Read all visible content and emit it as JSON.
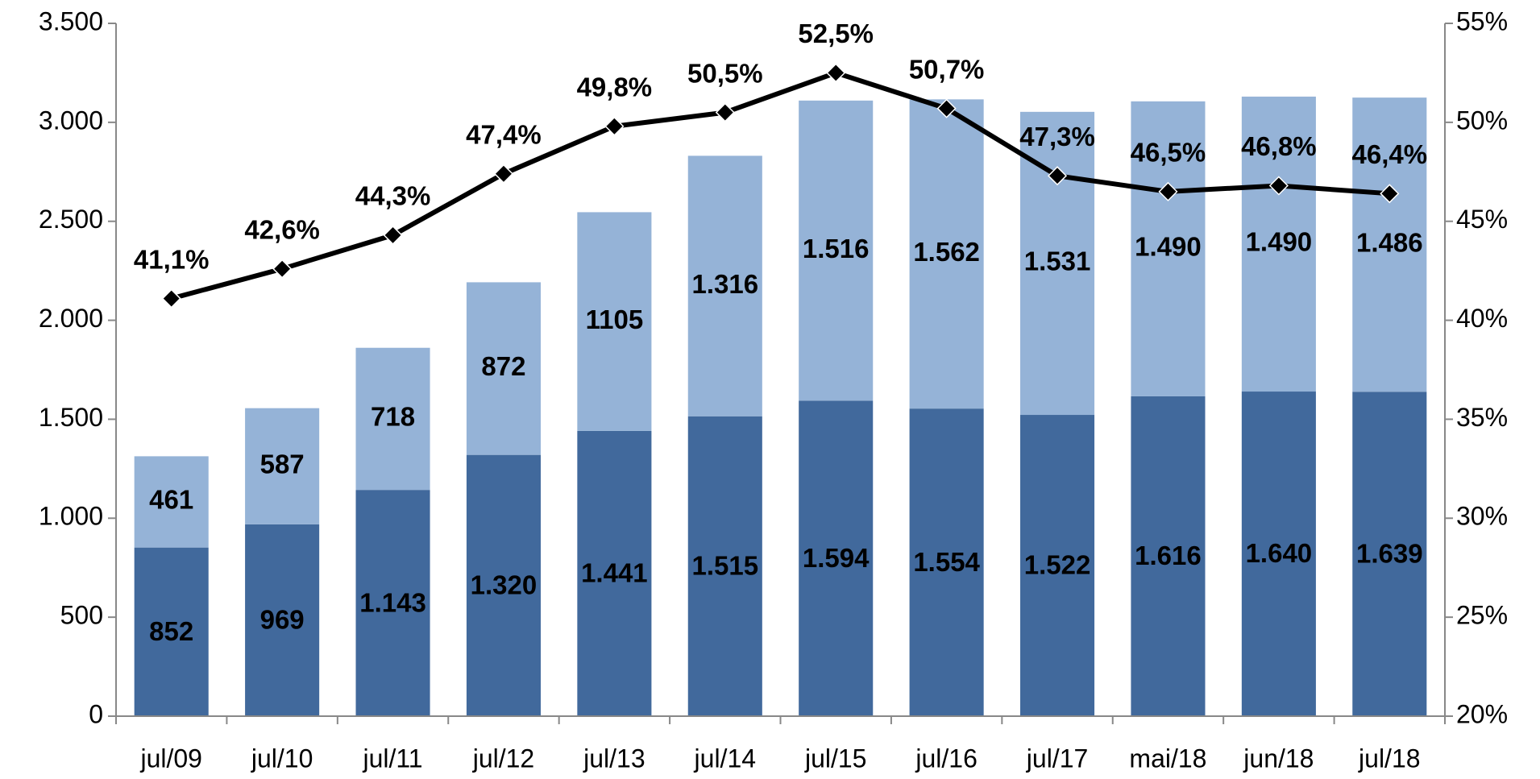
{
  "chart_data": {
    "type": "bar",
    "categories": [
      "jul/09",
      "jul/10",
      "jul/11",
      "jul/12",
      "jul/13",
      "jul/14",
      "jul/15",
      "jul/16",
      "jul/17",
      "mai/18",
      "jun/18",
      "jul/18"
    ],
    "stacked": true,
    "series": [
      {
        "color": "#41699c",
        "values": [
          852,
          969,
          1143,
          1320,
          1441,
          1515,
          1594,
          1554,
          1522,
          1616,
          1640,
          1639
        ],
        "value_labels": [
          "852",
          "969",
          "1.143",
          "1.320",
          "1.441",
          "1.515",
          "1.594",
          "1.554",
          "1.522",
          "1.616",
          "1.640",
          "1.639"
        ]
      },
      {
        "color": "#95b3d7",
        "values": [
          461,
          587,
          718,
          872,
          1105,
          1316,
          1516,
          1562,
          1531,
          1490,
          1490,
          1486
        ],
        "value_labels": [
          "461",
          "587",
          "718",
          "872",
          "1105",
          "1.316",
          "1.516",
          "1.562",
          "1.531",
          "1.490",
          "1.490",
          "1.486"
        ]
      },
      {
        "type": "line",
        "axis": "y2",
        "color": "#000000",
        "values": [
          41.1,
          42.6,
          44.3,
          47.4,
          49.8,
          50.5,
          52.5,
          50.7,
          47.3,
          46.5,
          46.8,
          46.4
        ],
        "value_labels": [
          "41,1%",
          "42,6%",
          "44,3%",
          "47,4%",
          "49,8%",
          "50,5%",
          "52,5%",
          "50,7%",
          "47,3%",
          "46,5%",
          "46,8%",
          "46,4%"
        ]
      }
    ],
    "ylim": [
      0,
      3500
    ],
    "yticks": [
      0,
      500,
      {
        "value": 1000,
        "label": "1.000"
      },
      {
        "value": 1500,
        "label": "1.500"
      },
      {
        "value": 2000,
        "label": "2.000"
      },
      {
        "value": 2500,
        "label": "2.500"
      },
      {
        "value": 3000,
        "label": "3.000"
      },
      {
        "value": 3500,
        "label": "3.500"
      }
    ],
    "y2lim": [
      20,
      55
    ],
    "y2ticks": [
      {
        "value": 20,
        "label": "20%"
      },
      {
        "value": 25,
        "label": "25%"
      },
      {
        "value": 30,
        "label": "30%"
      },
      {
        "value": 35,
        "label": "35%"
      },
      {
        "value": 40,
        "label": "40%"
      },
      {
        "value": 45,
        "label": "45%"
      },
      {
        "value": 50,
        "label": "50%"
      },
      {
        "value": 55,
        "label": "55%"
      }
    ],
    "grid": false
  }
}
